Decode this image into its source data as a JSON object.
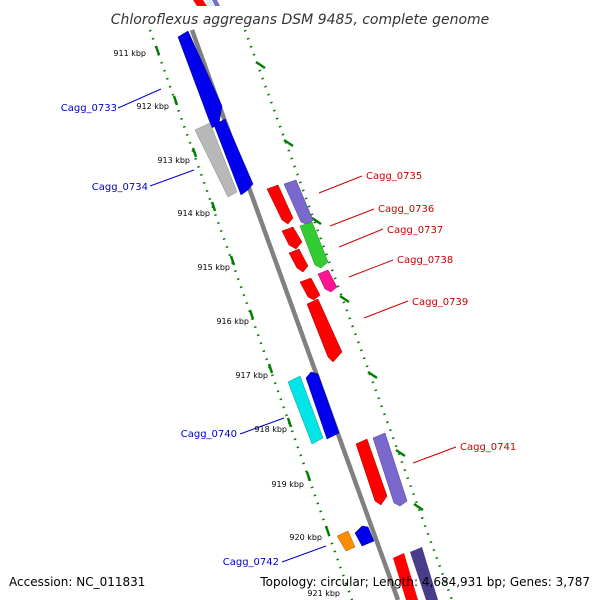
{
  "title": "Chloroflexus aggregans DSM 9485, complete genome",
  "footer": {
    "accession": "Accession: NC_011831",
    "summary": "Topology: circular; Length: 4,684,931 bp; Genes: 3,787"
  },
  "kbp_ticks": [
    "911 kbp",
    "912 kbp",
    "913 kbp",
    "914 kbp",
    "915 kbp",
    "916 kbp",
    "917 kbp",
    "918 kbp",
    "919 kbp",
    "920 kbp",
    "921 kbp"
  ],
  "gene_labels": {
    "cagg_0733": "Cagg_0733",
    "cagg_0734": "Cagg_0734",
    "cagg_0735": "Cagg_0735",
    "cagg_0736": "Cagg_0736",
    "cagg_0737": "Cagg_0737",
    "cagg_0738": "Cagg_0738",
    "cagg_0739": "Cagg_0739",
    "cagg_0740": "Cagg_0740",
    "cagg_0741": "Cagg_0741",
    "cagg_0742": "Cagg_0742"
  },
  "colors": {
    "forward_label": "#cc0000",
    "reverse_label": "#0000cc",
    "backbone": "#808080",
    "tick": "#008000"
  }
}
